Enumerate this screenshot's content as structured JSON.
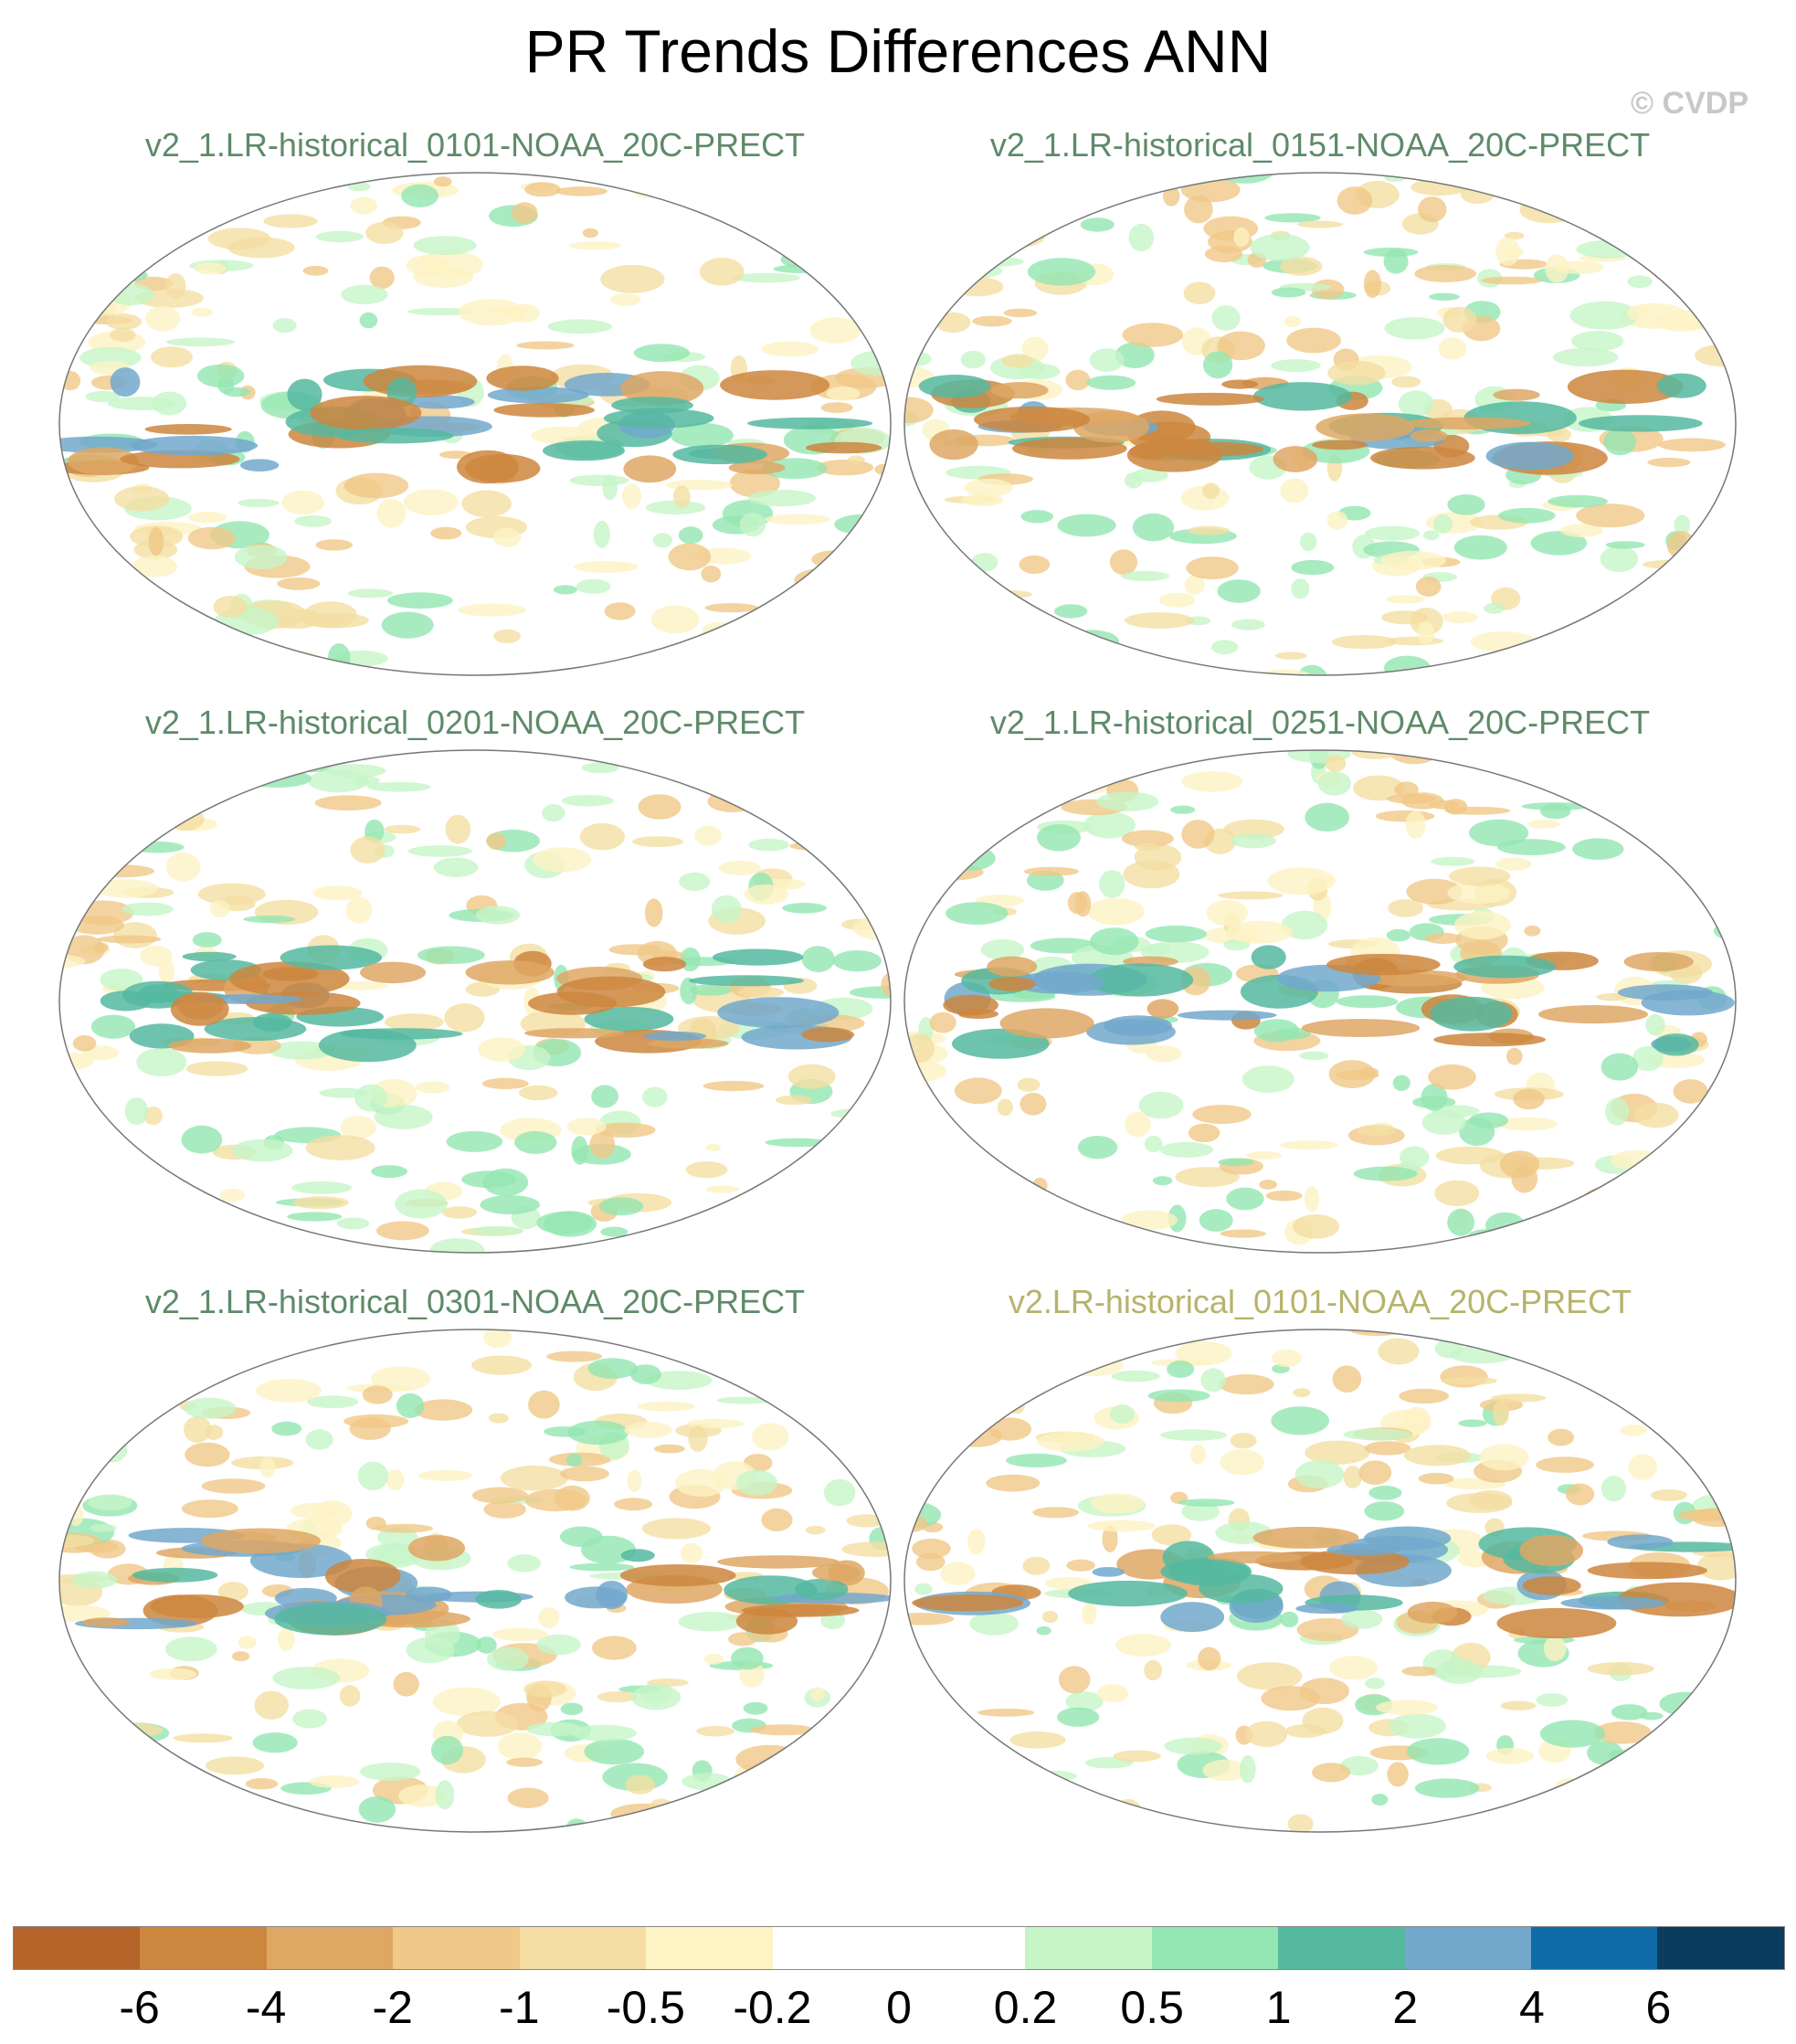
{
  "title": "PR Trends Differences ANN",
  "credit": "© CVDP",
  "panels": [
    {
      "label": "v2_1.LR-historical_0101-NOAA_20C-PRECT",
      "style": "green"
    },
    {
      "label": "v2_1.LR-historical_0151-NOAA_20C-PRECT",
      "style": "green"
    },
    {
      "label": "v2_1.LR-historical_0201-NOAA_20C-PRECT",
      "style": "green"
    },
    {
      "label": "v2_1.LR-historical_0251-NOAA_20C-PRECT",
      "style": "green"
    },
    {
      "label": "v2_1.LR-historical_0301-NOAA_20C-PRECT",
      "style": "green"
    },
    {
      "label": "v2.LR-historical_0101-NOAA_20C-PRECT",
      "style": "alt"
    }
  ],
  "colorbar": {
    "colors": [
      "#b5652a",
      "#cc863e",
      "#dea764",
      "#f0c887",
      "#f4dea3",
      "#fdf3c3",
      "#ffffff",
      "#ffffff",
      "#c7f5c8",
      "#93e6b2",
      "#55b9a0",
      "#72a8cc",
      "#0f6aa8",
      "#093c5e"
    ],
    "tick_labels": [
      "-6",
      "-4",
      "-2",
      "-1",
      "-0.5",
      "-0.2",
      "0",
      "0.2",
      "0.5",
      "1",
      "2",
      "4",
      "6"
    ]
  }
}
